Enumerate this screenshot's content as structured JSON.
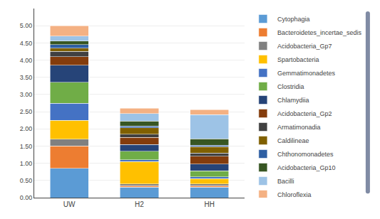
{
  "chart_data": {
    "type": "bar",
    "stacked": true,
    "categories": [
      "UW",
      "H2",
      "HH"
    ],
    "series": [
      {
        "name": "Cytophagia",
        "color": "#5B9BD5",
        "values": [
          0.85,
          0.3,
          0.3
        ]
      },
      {
        "name": "Bacteroidetes_incertae_sedis",
        "color": "#ED7D31",
        "values": [
          0.65,
          0.05,
          0.05
        ]
      },
      {
        "name": "Acidobacteria_Gp7",
        "color": "#808080",
        "values": [
          0.2,
          0.05,
          0.05
        ]
      },
      {
        "name": "Spartobacteria",
        "color": "#FFC000",
        "values": [
          0.55,
          0.65,
          0.15
        ]
      },
      {
        "name": "Gemmatimonadetes",
        "color": "#4472C4",
        "values": [
          0.5,
          0.05,
          0.05
        ]
      },
      {
        "name": "Clostridia",
        "color": "#70AD47",
        "values": [
          0.6,
          0.25,
          0.18
        ]
      },
      {
        "name": "Chlamydiia",
        "color": "#264478",
        "values": [
          0.5,
          0.2,
          0.2
        ]
      },
      {
        "name": "Acidobacteria_Gp2",
        "color": "#843C0C",
        "values": [
          0.25,
          0.2,
          0.22
        ]
      },
      {
        "name": "Armatimonadia",
        "color": "#404040",
        "values": [
          0.15,
          0.1,
          0.1
        ]
      },
      {
        "name": "Caldilineae",
        "color": "#806000",
        "values": [
          0.1,
          0.18,
          0.18
        ]
      },
      {
        "name": "Chthonomonadetes",
        "color": "#2E5FA3",
        "values": [
          0.1,
          0.05,
          0.05
        ]
      },
      {
        "name": "Acidobacteria_Gp10",
        "color": "#375623",
        "values": [
          0.1,
          0.15,
          0.18
        ]
      },
      {
        "name": "Bacilli",
        "color": "#9DC3E6",
        "values": [
          0.15,
          0.22,
          0.7
        ]
      },
      {
        "name": "Chloroflexia",
        "color": "#F4B183",
        "values": [
          0.3,
          0.15,
          0.15
        ]
      }
    ],
    "ylim": [
      0,
      5.5
    ],
    "yticks": [
      {
        "value": 0,
        "label": "0.00"
      },
      {
        "value": 0.5,
        "label": "0.50"
      },
      {
        "value": 1,
        "label": "1.00"
      },
      {
        "value": 1.5,
        "label": "1.50"
      },
      {
        "value": 2,
        "label": "2.00"
      },
      {
        "value": 2.5,
        "label": "2.50"
      },
      {
        "value": 3,
        "label": "3.00"
      },
      {
        "value": 3.5,
        "label": "3.50"
      },
      {
        "value": 4,
        "label": "4.00"
      },
      {
        "value": 4.5,
        "label": "4.50"
      },
      {
        "value": 5,
        "label": "5.00"
      }
    ],
    "grid": true,
    "legend": "upper right"
  }
}
